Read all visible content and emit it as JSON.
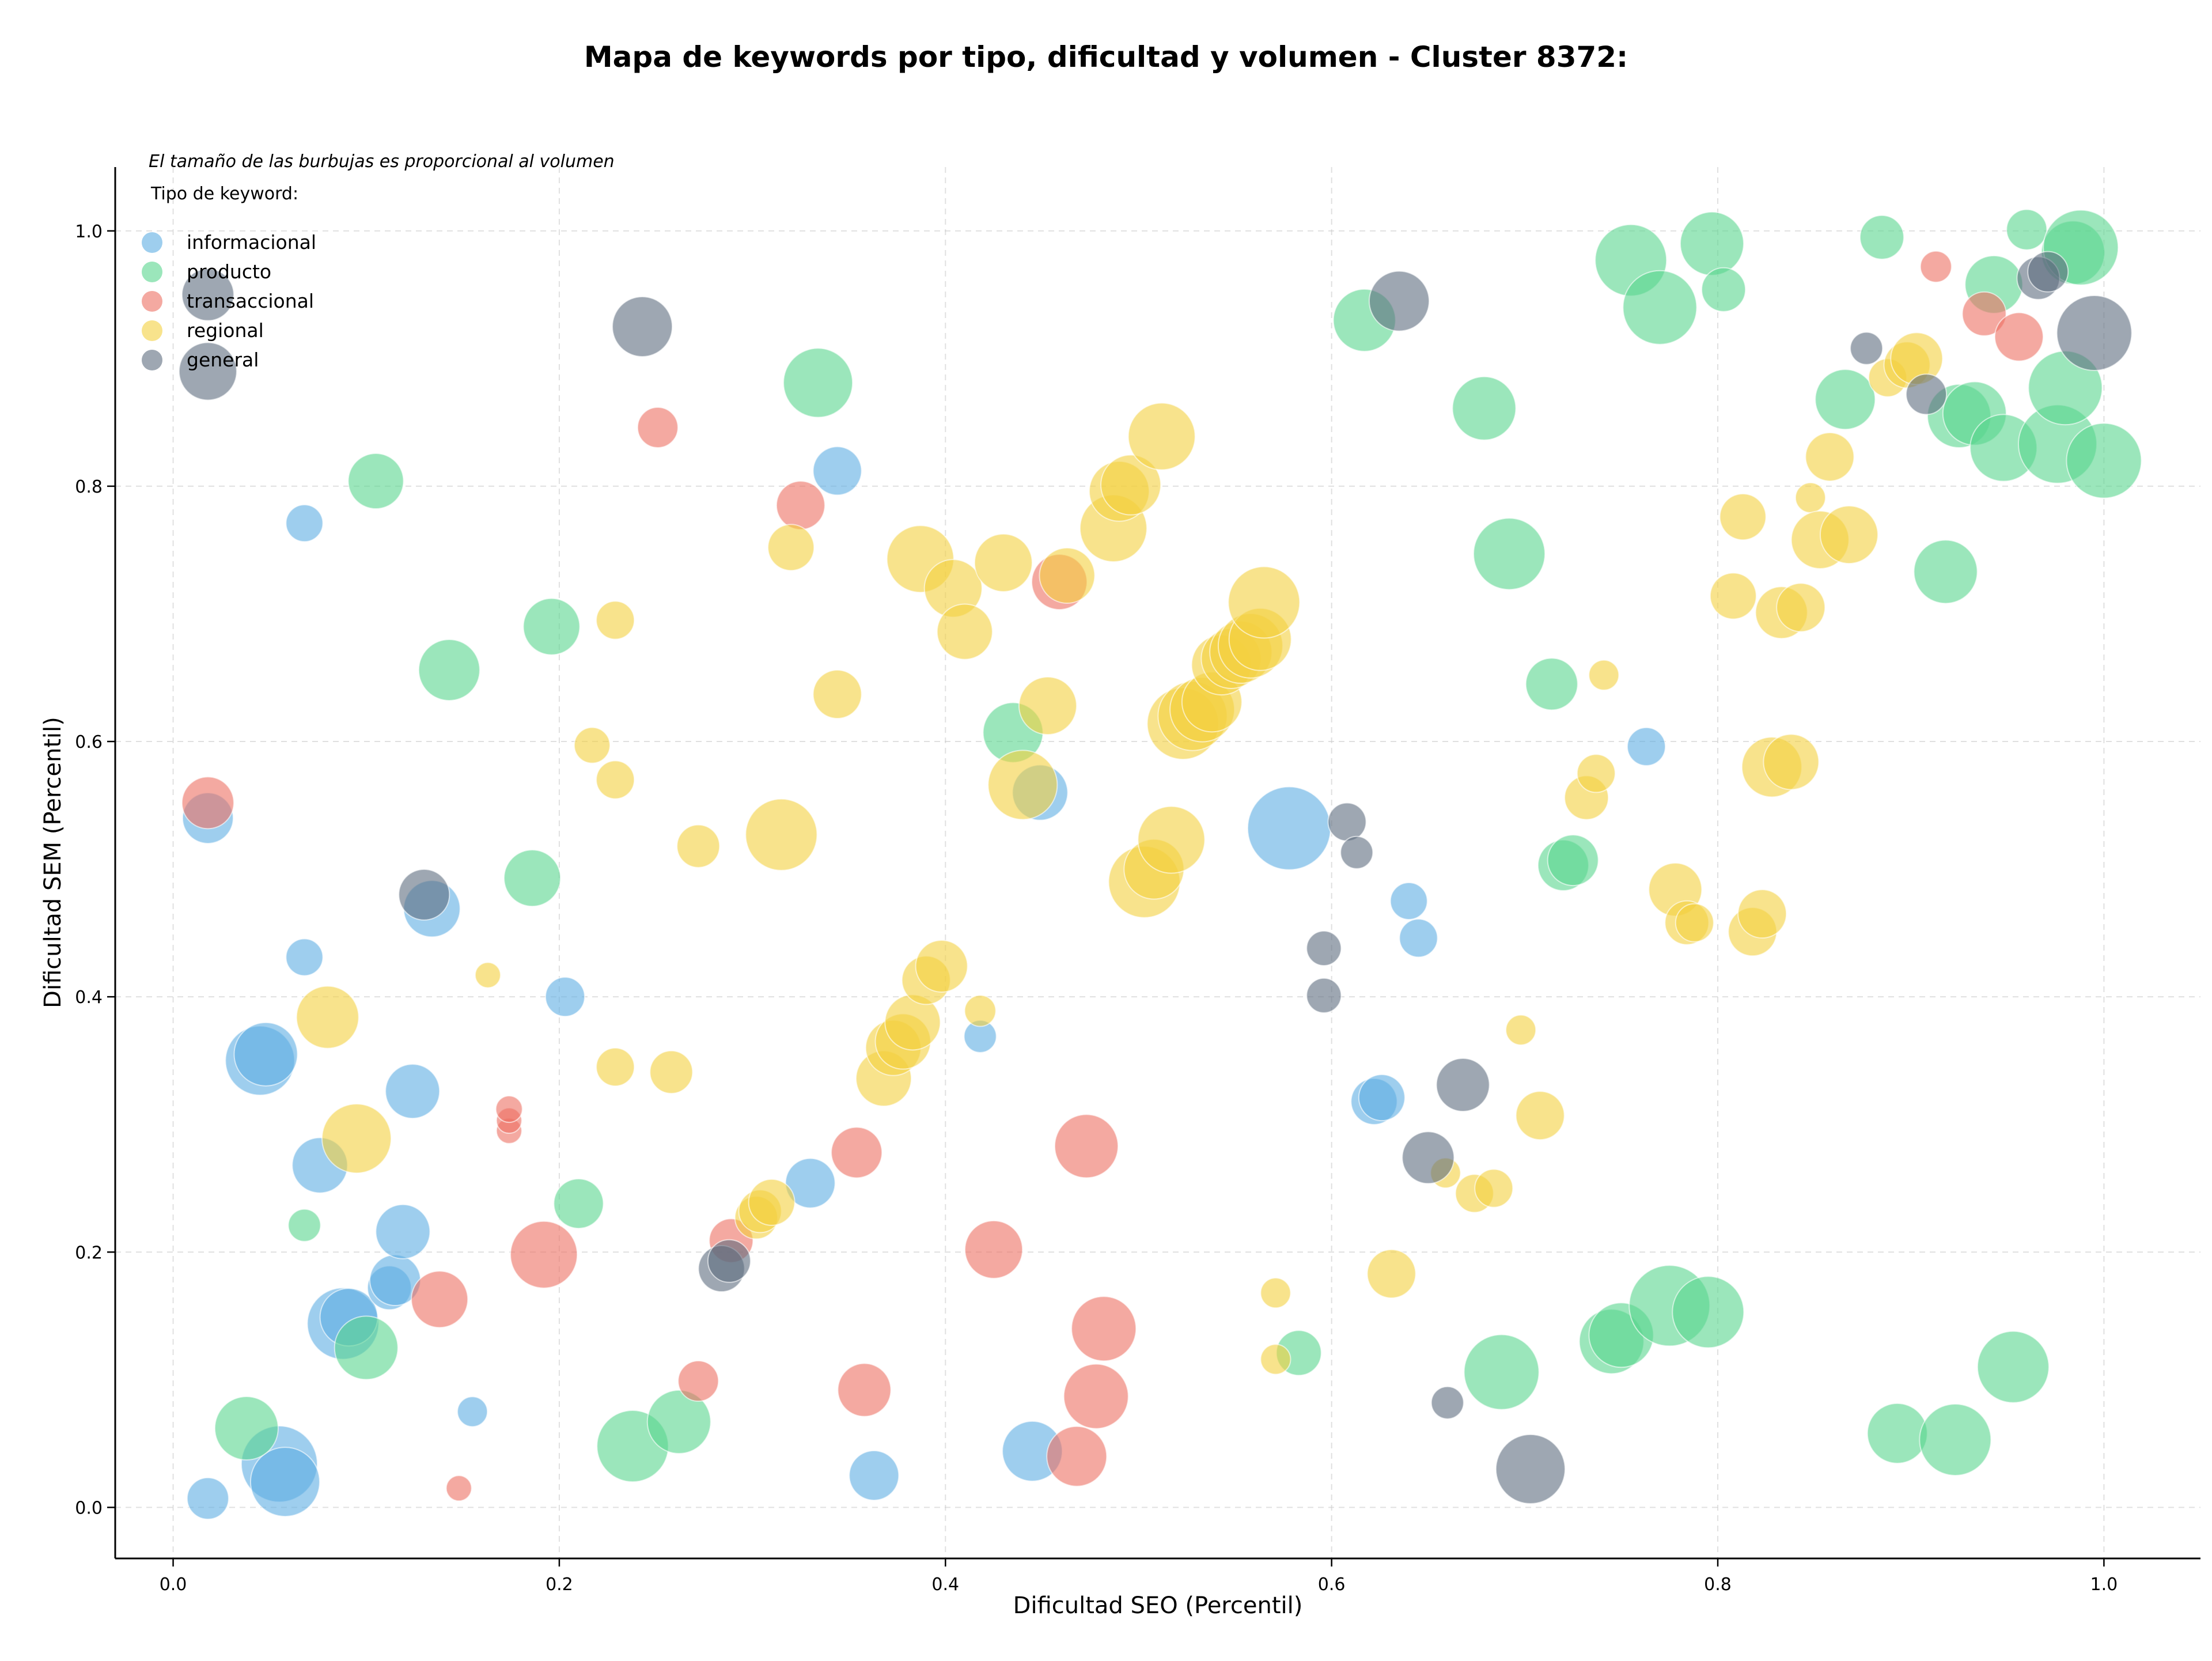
{
  "chart_data": {
    "type": "scatter",
    "title": "Mapa de keywords por tipo, dificultad y volumen - Cluster 8372:",
    "subtitle": "El tamaño de las burbujas es proporcional al volumen",
    "xlabel": "Dificultad SEO (Percentil)",
    "ylabel": "Dificultad SEM (Percentil)",
    "xlim": [
      -0.03,
      1.05
    ],
    "ylim": [
      -0.04,
      1.05
    ],
    "x_ticks": [
      "0.0",
      "0.2",
      "0.4",
      "0.6",
      "0.8",
      "1.0"
    ],
    "y_ticks": [
      "0.0",
      "0.2",
      "0.4",
      "0.6",
      "0.8",
      "1.0"
    ],
    "grid": true,
    "legend_title": "Tipo de keyword:",
    "legend_position": "top-left",
    "series": [
      {
        "name": "informacional",
        "color": "#5DADE2",
        "points": [
          [
            0.018,
            0.007,
            36
          ],
          [
            0.018,
            0.54,
            44
          ],
          [
            0.045,
            0.35,
            60
          ],
          [
            0.048,
            0.355,
            55
          ],
          [
            0.055,
            0.034,
            66
          ],
          [
            0.058,
            0.02,
            60
          ],
          [
            0.068,
            0.771,
            32
          ],
          [
            0.068,
            0.431,
            32
          ],
          [
            0.076,
            0.268,
            48
          ],
          [
            0.088,
            0.144,
            62
          ],
          [
            0.091,
            0.149,
            50
          ],
          [
            0.112,
            0.172,
            38
          ],
          [
            0.115,
            0.178,
            44
          ],
          [
            0.119,
            0.216,
            47
          ],
          [
            0.124,
            0.326,
            47
          ],
          [
            0.134,
            0.469,
            49
          ],
          [
            0.155,
            0.075,
            26
          ],
          [
            0.203,
            0.4,
            34
          ],
          [
            0.33,
            0.254,
            43
          ],
          [
            0.344,
            0.812,
            42
          ],
          [
            0.363,
            0.025,
            43
          ],
          [
            0.418,
            0.369,
            28
          ],
          [
            0.445,
            0.044,
            52
          ],
          [
            0.449,
            0.56,
            48
          ],
          [
            0.578,
            0.532,
            72
          ],
          [
            0.622,
            0.318,
            40
          ],
          [
            0.626,
            0.321,
            40
          ],
          [
            0.64,
            0.475,
            32
          ],
          [
            0.645,
            0.446,
            33
          ],
          [
            0.763,
            0.596,
            33
          ]
        ]
      },
      {
        "name": "producto",
        "color": "#58D68D",
        "points": [
          [
            0.038,
            0.062,
            55
          ],
          [
            0.068,
            0.221,
            28
          ],
          [
            0.1,
            0.125,
            55
          ],
          [
            0.105,
            0.804,
            48
          ],
          [
            0.143,
            0.656,
            53
          ],
          [
            0.186,
            0.493,
            49
          ],
          [
            0.196,
            0.69,
            49
          ],
          [
            0.21,
            0.238,
            43
          ],
          [
            0.238,
            0.048,
            62
          ],
          [
            0.262,
            0.067,
            55
          ],
          [
            0.334,
            0.881,
            60
          ],
          [
            0.435,
            0.607,
            52
          ],
          [
            0.583,
            0.121,
            39
          ],
          [
            0.617,
            0.93,
            54
          ],
          [
            0.679,
            0.861,
            55
          ],
          [
            0.688,
            0.106,
            65
          ],
          [
            0.692,
            0.747,
            62
          ],
          [
            0.714,
            0.645,
            45
          ],
          [
            0.72,
            0.503,
            44
          ],
          [
            0.725,
            0.507,
            44
          ],
          [
            0.745,
            0.13,
            56
          ],
          [
            0.75,
            0.135,
            56
          ],
          [
            0.755,
            0.977,
            62
          ],
          [
            0.77,
            0.94,
            64
          ],
          [
            0.775,
            0.158,
            70
          ],
          [
            0.795,
            0.153,
            62
          ],
          [
            0.797,
            0.99,
            55
          ],
          [
            0.803,
            0.954,
            38
          ],
          [
            0.866,
            0.868,
            52
          ],
          [
            0.885,
            0.995,
            38
          ],
          [
            0.893,
            0.058,
            52
          ],
          [
            0.918,
            0.733,
            55
          ],
          [
            0.923,
            0.053,
            62
          ],
          [
            0.925,
            0.855,
            55
          ],
          [
            0.933,
            0.857,
            55
          ],
          [
            0.943,
            0.958,
            50
          ],
          [
            0.948,
            0.83,
            58
          ],
          [
            0.953,
            0.11,
            62
          ],
          [
            0.96,
            1.001,
            35
          ],
          [
            0.976,
            0.833,
            68
          ],
          [
            0.98,
            0.877,
            64
          ],
          [
            0.984,
            0.983,
            55
          ],
          [
            0.988,
            0.987,
            65
          ],
          [
            1.0,
            0.82,
            65
          ]
        ]
      },
      {
        "name": "transaccional",
        "color": "#EC7063",
        "points": [
          [
            0.018,
            0.552,
            45
          ],
          [
            0.138,
            0.163,
            49
          ],
          [
            0.148,
            0.015,
            22
          ],
          [
            0.174,
            0.295,
            22
          ],
          [
            0.174,
            0.303,
            22
          ],
          [
            0.174,
            0.312,
            23
          ],
          [
            0.192,
            0.198,
            58
          ],
          [
            0.251,
            0.846,
            35
          ],
          [
            0.272,
            0.099,
            35
          ],
          [
            0.289,
            0.209,
            38
          ],
          [
            0.325,
            0.785,
            42
          ],
          [
            0.354,
            0.278,
            44
          ],
          [
            0.358,
            0.092,
            46
          ],
          [
            0.425,
            0.202,
            50
          ],
          [
            0.459,
            0.725,
            48
          ],
          [
            0.468,
            0.04,
            52
          ],
          [
            0.473,
            0.283,
            55
          ],
          [
            0.482,
            0.14,
            56
          ],
          [
            0.478,
            0.087,
            56
          ],
          [
            0.913,
            0.972,
            27
          ],
          [
            0.938,
            0.935,
            38
          ],
          [
            0.956,
            0.917,
            42
          ]
        ]
      },
      {
        "name": "regional",
        "color": "#F4D03F",
        "points": [
          [
            0.08,
            0.384,
            54
          ],
          [
            0.095,
            0.289,
            60
          ],
          [
            0.163,
            0.417,
            22
          ],
          [
            0.229,
            0.695,
            33
          ],
          [
            0.229,
            0.57,
            33
          ],
          [
            0.229,
            0.345,
            33
          ],
          [
            0.217,
            0.597,
            31
          ],
          [
            0.258,
            0.341,
            37
          ],
          [
            0.272,
            0.518,
            37
          ],
          [
            0.302,
            0.227,
            37
          ],
          [
            0.304,
            0.232,
            37
          ],
          [
            0.31,
            0.239,
            40
          ],
          [
            0.315,
            0.527,
            62
          ],
          [
            0.32,
            0.752,
            40
          ],
          [
            0.344,
            0.637,
            42
          ],
          [
            0.368,
            0.336,
            48
          ],
          [
            0.373,
            0.36,
            48
          ],
          [
            0.378,
            0.365,
            48
          ],
          [
            0.383,
            0.38,
            48
          ],
          [
            0.387,
            0.743,
            58
          ],
          [
            0.39,
            0.413,
            42
          ],
          [
            0.398,
            0.424,
            45
          ],
          [
            0.404,
            0.72,
            50
          ],
          [
            0.41,
            0.686,
            48
          ],
          [
            0.418,
            0.389,
            27
          ],
          [
            0.43,
            0.74,
            50
          ],
          [
            0.44,
            0.566,
            60
          ],
          [
            0.453,
            0.628,
            50
          ],
          [
            0.463,
            0.73,
            48
          ],
          [
            0.487,
            0.767,
            58
          ],
          [
            0.49,
            0.796,
            52
          ],
          [
            0.496,
            0.801,
            52
          ],
          [
            0.503,
            0.49,
            62
          ],
          [
            0.508,
            0.5,
            52
          ],
          [
            0.512,
            0.839,
            58
          ],
          [
            0.517,
            0.523,
            58
          ],
          [
            0.523,
            0.614,
            62
          ],
          [
            0.528,
            0.62,
            60
          ],
          [
            0.533,
            0.625,
            56
          ],
          [
            0.538,
            0.631,
            52
          ],
          [
            0.543,
            0.66,
            52
          ],
          [
            0.548,
            0.665,
            52
          ],
          [
            0.553,
            0.67,
            54
          ],
          [
            0.558,
            0.675,
            56
          ],
          [
            0.563,
            0.68,
            54
          ],
          [
            0.565,
            0.709,
            62
          ],
          [
            0.571,
            0.168,
            26
          ],
          [
            0.571,
            0.116,
            26
          ],
          [
            0.631,
            0.183,
            42
          ],
          [
            0.659,
            0.262,
            26
          ],
          [
            0.674,
            0.246,
            33
          ],
          [
            0.684,
            0.25,
            33
          ],
          [
            0.698,
            0.374,
            26
          ],
          [
            0.708,
            0.307,
            42
          ],
          [
            0.732,
            0.556,
            38
          ],
          [
            0.737,
            0.575,
            33
          ],
          [
            0.741,
            0.652,
            26
          ],
          [
            0.778,
            0.484,
            46
          ],
          [
            0.784,
            0.458,
            38
          ],
          [
            0.788,
            0.458,
            33
          ],
          [
            0.808,
            0.714,
            40
          ],
          [
            0.813,
            0.776,
            40
          ],
          [
            0.818,
            0.451,
            42
          ],
          [
            0.823,
            0.465,
            42
          ],
          [
            0.828,
            0.58,
            52
          ],
          [
            0.833,
            0.701,
            45
          ],
          [
            0.838,
            0.584,
            48
          ],
          [
            0.843,
            0.705,
            42
          ],
          [
            0.848,
            0.791,
            26
          ],
          [
            0.853,
            0.758,
            50
          ],
          [
            0.858,
            0.823,
            42
          ],
          [
            0.868,
            0.762,
            50
          ],
          [
            0.888,
            0.885,
            33
          ],
          [
            0.898,
            0.895,
            40
          ],
          [
            0.903,
            0.9,
            45
          ]
        ]
      },
      {
        "name": "general",
        "color": "#5D6D7E",
        "points": [
          [
            0.018,
            0.89,
            50
          ],
          [
            0.018,
            0.95,
            45
          ],
          [
            0.13,
            0.48,
            44
          ],
          [
            0.243,
            0.925,
            52
          ],
          [
            0.284,
            0.187,
            40
          ],
          [
            0.288,
            0.193,
            37
          ],
          [
            0.596,
            0.438,
            30
          ],
          [
            0.596,
            0.401,
            30
          ],
          [
            0.608,
            0.537,
            33
          ],
          [
            0.613,
            0.513,
            28
          ],
          [
            0.635,
            0.945,
            52
          ],
          [
            0.65,
            0.274,
            45
          ],
          [
            0.66,
            0.082,
            28
          ],
          [
            0.668,
            0.331,
            46
          ],
          [
            0.703,
            0.03,
            60
          ],
          [
            0.877,
            0.908,
            28
          ],
          [
            0.908,
            0.872,
            35
          ],
          [
            0.966,
            0.963,
            37
          ],
          [
            0.971,
            0.968,
            35
          ],
          [
            0.995,
            0.92,
            65
          ]
        ]
      }
    ]
  }
}
